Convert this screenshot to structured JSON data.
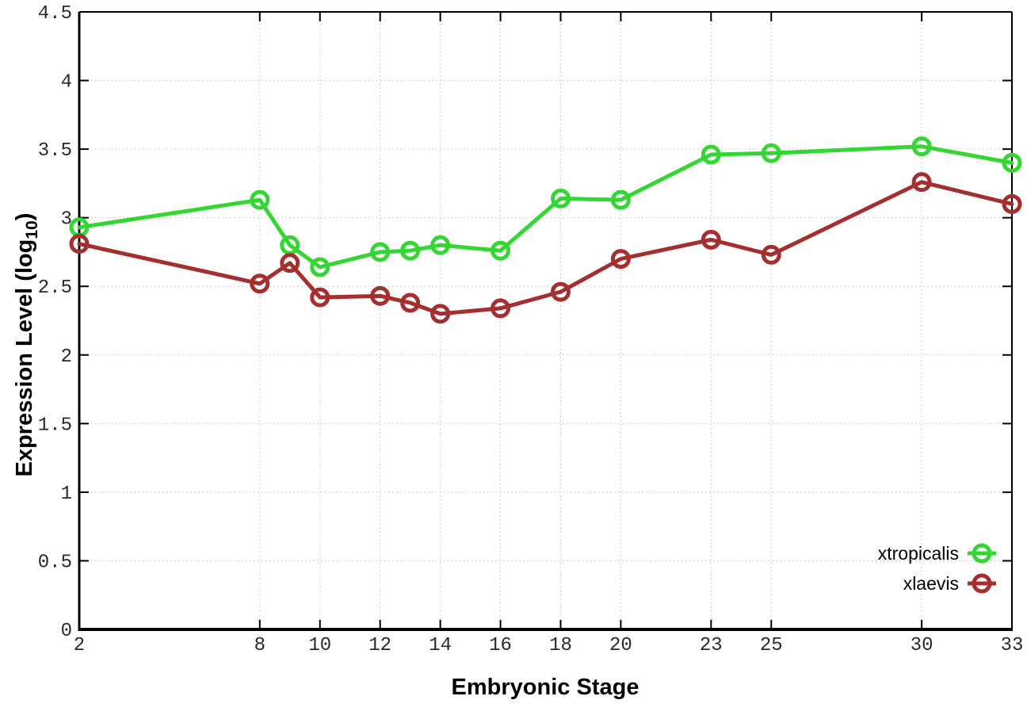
{
  "chart_data": {
    "type": "line",
    "title": "",
    "xlabel": "Embryonic Stage",
    "ylabel": "Expression Level (log10)",
    "ylabel_parts": {
      "main": "Expression Level (log",
      "sub": "10",
      "close": ")"
    },
    "xlim": [
      2,
      33
    ],
    "ylim": [
      0,
      4.5
    ],
    "xticks": [
      2,
      8,
      10,
      12,
      14,
      16,
      18,
      20,
      23,
      25,
      30,
      33
    ],
    "yticks": [
      0,
      0.5,
      1,
      1.5,
      2,
      2.5,
      3,
      3.5,
      4,
      4.5
    ],
    "grid": true,
    "legend_position": "bottom-right",
    "x": [
      2,
      8,
      9,
      10,
      12,
      13,
      14,
      16,
      18,
      20,
      23,
      25,
      30,
      33
    ],
    "series": [
      {
        "name": "xtropicalis",
        "color": "#33d633",
        "values": [
          2.93,
          3.13,
          2.8,
          2.64,
          2.75,
          2.76,
          2.8,
          2.76,
          3.14,
          3.13,
          3.46,
          3.47,
          3.52,
          3.4
        ]
      },
      {
        "name": "xlaevis",
        "color": "#a52e2e",
        "values": [
          2.81,
          2.52,
          2.67,
          2.42,
          2.43,
          2.38,
          2.3,
          2.34,
          2.46,
          2.7,
          2.84,
          2.73,
          3.26,
          3.1
        ]
      }
    ]
  },
  "colors": {
    "background": "#ffffff",
    "grid": "#bdbdbd",
    "axis": "#000000",
    "tick_label": "#2a2a2a"
  }
}
